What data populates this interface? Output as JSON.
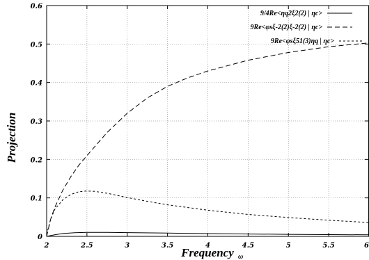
{
  "chart_data": {
    "type": "line",
    "xlabel": "Frequency",
    "xlabel_sub": "ω",
    "ylabel": "Projection",
    "xlim": [
      2,
      6
    ],
    "ylim": [
      0,
      0.6
    ],
    "grid": true,
    "legend_position": "top-right",
    "x_ticks": [
      "2",
      "2.5",
      "3",
      "3.5",
      "4",
      "4.5",
      "5",
      "5.5",
      "6"
    ],
    "y_ticks": [
      "0",
      "0.1",
      "0.2",
      "0.3",
      "0.4",
      "0.5",
      "0.6"
    ],
    "series": [
      {
        "name": "9/4Re<η_q^2 ξ_2^(2) | η_c>",
        "legend_parts": [
          "9/4Re<η",
          "q",
          "2",
          "ξ",
          "2",
          "(2)",
          " | η",
          "c",
          ">"
        ],
        "style": "solid",
        "x": [
          2.0,
          2.1,
          2.2,
          2.35,
          2.5,
          2.75,
          3.0,
          3.5,
          4.0,
          4.5,
          5.0,
          5.5,
          6.0
        ],
        "y": [
          0.0,
          0.004,
          0.0075,
          0.0095,
          0.0105,
          0.0105,
          0.0098,
          0.0085,
          0.0072,
          0.0062,
          0.0053,
          0.0046,
          0.004
        ]
      },
      {
        "name": "9Re<φ_s ξ_-2^(2) ξ_-2^(2) | η_c>",
        "legend_parts": [
          "9Re<φ",
          "s",
          "ξ",
          "-2",
          "(2)",
          "ξ",
          "-2",
          "(2)",
          " | η",
          "c",
          ">"
        ],
        "style": "dashed",
        "x": [
          2.0,
          2.05,
          2.1,
          2.2,
          2.3,
          2.4,
          2.5,
          2.75,
          3.0,
          3.25,
          3.5,
          3.75,
          4.0,
          4.5,
          5.0,
          5.5,
          6.0
        ],
        "y": [
          0.0,
          0.045,
          0.075,
          0.12,
          0.155,
          0.185,
          0.21,
          0.27,
          0.32,
          0.36,
          0.39,
          0.412,
          0.43,
          0.458,
          0.478,
          0.493,
          0.503
        ]
      },
      {
        "name": "9Re<φ_s ξ_51^(3) η_q | η_c>",
        "legend_parts": [
          "9Re<φ",
          "s",
          "ξ",
          "51",
          "(3)",
          "η",
          "q",
          " | η",
          "c",
          ">"
        ],
        "style": "short-dashed",
        "x": [
          2.0,
          2.05,
          2.1,
          2.2,
          2.3,
          2.4,
          2.5,
          2.6,
          2.75,
          3.0,
          3.25,
          3.5,
          4.0,
          4.5,
          5.0,
          5.5,
          6.0
        ],
        "y": [
          0.005,
          0.045,
          0.07,
          0.095,
          0.109,
          0.116,
          0.118,
          0.117,
          0.112,
          0.101,
          0.091,
          0.082,
          0.068,
          0.057,
          0.049,
          0.042,
          0.036
        ]
      }
    ]
  }
}
